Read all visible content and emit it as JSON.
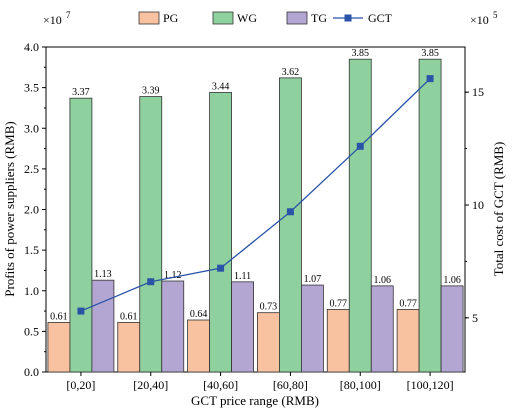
{
  "chart_data": {
    "type": "bar",
    "categories": [
      "[0,20]",
      "[20,40]",
      "[40,60]",
      "[60,80]",
      "[80,100]",
      "[100,120]"
    ],
    "series": [
      {
        "name": "PG",
        "color": "#f8c19f",
        "values": [
          0.61,
          0.61,
          0.64,
          0.73,
          0.77,
          0.77
        ]
      },
      {
        "name": "WG",
        "color": "#8fd19e",
        "values": [
          3.37,
          3.39,
          3.44,
          3.62,
          3.85,
          3.85
        ]
      },
      {
        "name": "TG",
        "color": "#b3a6d3",
        "values": [
          1.13,
          1.12,
          1.11,
          1.07,
          1.06,
          1.06
        ]
      }
    ],
    "bar_labels": {
      "PG": [
        "0.61",
        "0.61",
        "0.64",
        "0.73",
        "0.77",
        "0.77"
      ],
      "WG": [
        "3.37",
        "3.39",
        "3.44",
        "3.62",
        "3.85",
        "3.85"
      ],
      "TG": [
        "1.13",
        "1.12",
        "1.11",
        "1.07",
        "1.06",
        "1.06"
      ]
    },
    "line_series": {
      "name": "GCT",
      "color": "#2a54a8",
      "axis": "right",
      "values": [
        5.3,
        6.6,
        7.2,
        9.7,
        12.6,
        15.6
      ]
    },
    "xlabel": "GCT price range (RMB)",
    "ylabel": "Profits of power suppliers (RMB)",
    "y2label": "Total cost of GCT  (RMB)",
    "ylim": [
      0,
      4.0
    ],
    "y2lim": [
      2.6,
      17.0
    ],
    "yticks": [
      "0.0",
      "0.5",
      "1.0",
      "1.5",
      "2.0",
      "2.5",
      "3.0",
      "3.5",
      "4.0"
    ],
    "y2ticks": [
      "5",
      "10",
      "15"
    ],
    "y_multiplier": "×10",
    "y_multiplier_exp": "7",
    "y2_multiplier": "×10",
    "y2_multiplier_exp": "5",
    "legend": [
      "PG",
      "WG",
      "TG",
      "GCT"
    ],
    "legend_position": "top",
    "grid": false
  }
}
